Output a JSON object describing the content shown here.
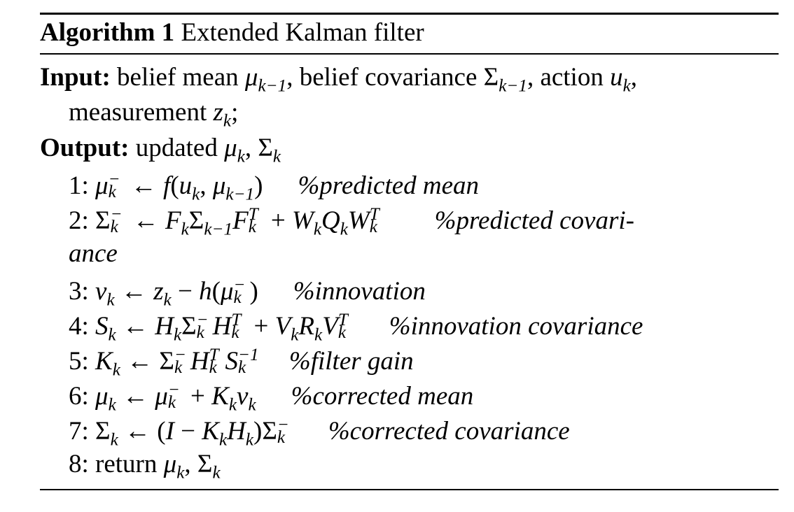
{
  "algorithm": {
    "caption_label": "Algorithm 1",
    "caption_title": "Extended Kalman filter",
    "input_label": "Input:",
    "input_text_1": "belief mean ",
    "input_text_2": "belief covariance ",
    "input_text_3": "action ",
    "input_text_4": "measurement ",
    "output_label": "Output:",
    "output_text": "updated ",
    "steps": [
      {
        "num": "1:",
        "comment": "%predicted mean"
      },
      {
        "num": "2:",
        "comment": "%predicted covari-",
        "comment_cont": "ance"
      },
      {
        "num": "3:",
        "comment": "%innovation"
      },
      {
        "num": "4:",
        "comment": "%innovation covariance"
      },
      {
        "num": "5:",
        "comment": "%filter gain"
      },
      {
        "num": "6:",
        "comment": "%corrected mean"
      },
      {
        "num": "7:",
        "comment": "%corrected covariance"
      },
      {
        "num": "8:",
        "keyword": "return"
      }
    ]
  }
}
